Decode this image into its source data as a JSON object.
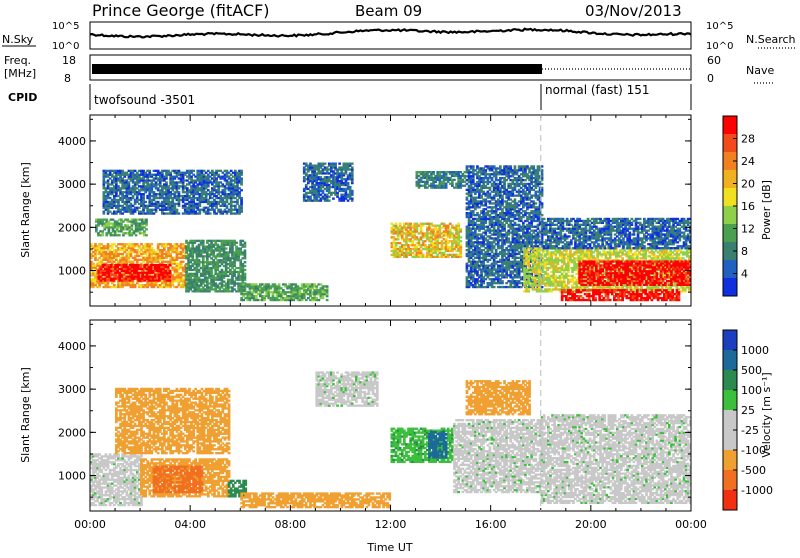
{
  "header": {
    "station": "Prince George (fitACF)",
    "beam": "Beam 09",
    "date": "03/Nov/2013"
  },
  "top_panels": {
    "nsky_label": "N.Sky",
    "nsky_ticks": [
      "10^5",
      "10^0"
    ],
    "nsearch_label": "N.Search",
    "nsearch_ticks": [
      "10^5",
      "10^0"
    ],
    "freq_label_line1": "Freq.",
    "freq_label_line2": "[MHz]",
    "freq_ticks": [
      "18",
      "8"
    ],
    "nave_label": "Nave",
    "nave_ticks": [
      "60",
      "0"
    ],
    "cpid_label": "CPID",
    "cpid_segments": [
      "twofsound -3501",
      "normal (fast) 151"
    ]
  },
  "power_colorbar": {
    "label": "Power [dB]",
    "ticks": [
      "28",
      "24",
      "20",
      "16",
      "12",
      "8",
      "4"
    ],
    "colors": [
      "#ff0000",
      "#f24a1a",
      "#f08020",
      "#f0b020",
      "#f0e020",
      "#8ed04a",
      "#4aa050",
      "#3a8070",
      "#2060c0",
      "#1030e0"
    ]
  },
  "velocity_colorbar": {
    "label": "Velocity [m s⁻¹]",
    "ticks": [
      "1000",
      "500",
      "100",
      "25",
      "-25",
      "-100",
      "-500",
      "-1000"
    ],
    "colors": [
      "#1a40c0",
      "#1c6a9a",
      "#2a8a50",
      "#3cc03c",
      "#c8c8c8",
      "#c8c8c8",
      "#f0a030",
      "#f07020",
      "#f03010"
    ]
  },
  "chart_data": [
    {
      "type": "heatmap",
      "title": "Power",
      "ylabel": "Slant Range [km]",
      "ylim": [
        180,
        4600
      ],
      "yticks": [
        "1000",
        "2000",
        "3000",
        "4000"
      ],
      "xticks": [
        "00:00",
        "04:00",
        "08:00",
        "12:00",
        "16:00",
        "20:00",
        "00:00"
      ],
      "xlim_hours": [
        0,
        24
      ],
      "mode_change_hour": 18,
      "regions": [
        {
          "t0": 0.0,
          "t1": 3.8,
          "r0": 600,
          "r1": 1600,
          "value": 22
        },
        {
          "t0": 0.3,
          "t1": 3.2,
          "r0": 750,
          "r1": 1150,
          "value": 30
        },
        {
          "t0": 3.8,
          "t1": 6.2,
          "r0": 500,
          "r1": 1700,
          "value": 10
        },
        {
          "t0": 0.2,
          "t1": 2.2,
          "r0": 1800,
          "r1": 2200,
          "value": 12
        },
        {
          "t0": 0.5,
          "t1": 6.0,
          "r0": 2300,
          "r1": 3300,
          "value": 6
        },
        {
          "t0": 6.0,
          "t1": 9.5,
          "r0": 300,
          "r1": 700,
          "value": 12
        },
        {
          "t0": 8.5,
          "t1": 10.5,
          "r0": 2600,
          "r1": 3500,
          "value": 6
        },
        {
          "t0": 12.0,
          "t1": 14.8,
          "r0": 1300,
          "r1": 2100,
          "value": 20
        },
        {
          "t0": 13.0,
          "t1": 15.0,
          "r0": 2900,
          "r1": 3300,
          "value": 8
        },
        {
          "t0": 15.0,
          "t1": 18.0,
          "r0": 600,
          "r1": 3400,
          "value": 6
        },
        {
          "t0": 17.3,
          "t1": 24.0,
          "r0": 500,
          "r1": 1500,
          "value": 18
        },
        {
          "t0": 19.5,
          "t1": 24.0,
          "r0": 650,
          "r1": 1200,
          "value": 30
        },
        {
          "t0": 18.8,
          "t1": 23.5,
          "r0": 300,
          "r1": 550,
          "value": 30
        },
        {
          "t0": 18.0,
          "t1": 24.0,
          "r0": 1500,
          "r1": 2200,
          "value": 6
        }
      ]
    },
    {
      "type": "heatmap",
      "title": "Velocity",
      "ylabel": "Slant Range [km]",
      "ylim": [
        180,
        4600
      ],
      "yticks": [
        "1000",
        "2000",
        "3000",
        "4000"
      ],
      "xticks": [
        "00:00",
        "04:00",
        "08:00",
        "12:00",
        "16:00",
        "20:00",
        "00:00"
      ],
      "xlabel": "Time UT",
      "xlim_hours": [
        0,
        24
      ],
      "mode_change_hour": 18,
      "regions": [
        {
          "t0": 0.0,
          "t1": 2.0,
          "r0": 300,
          "r1": 1500,
          "value": 0
        },
        {
          "t0": 2.0,
          "t1": 5.5,
          "r0": 500,
          "r1": 1400,
          "value": -400
        },
        {
          "t0": 2.5,
          "t1": 4.5,
          "r0": 600,
          "r1": 1200,
          "value": -700
        },
        {
          "t0": 5.5,
          "t1": 6.2,
          "r0": 500,
          "r1": 900,
          "value": 300
        },
        {
          "t0": 1.0,
          "t1": 5.5,
          "r0": 1500,
          "r1": 3000,
          "value": -150
        },
        {
          "t0": 6.0,
          "t1": 12.0,
          "r0": 250,
          "r1": 600,
          "value": -150
        },
        {
          "t0": 9.0,
          "t1": 11.5,
          "r0": 2600,
          "r1": 3400,
          "value": 0
        },
        {
          "t0": 12.0,
          "t1": 14.5,
          "r0": 1300,
          "r1": 2100,
          "value": 80
        },
        {
          "t0": 13.5,
          "t1": 14.2,
          "r0": 1400,
          "r1": 2000,
          "value": 600
        },
        {
          "t0": 15.0,
          "t1": 17.5,
          "r0": 2400,
          "r1": 3200,
          "value": -150
        },
        {
          "t0": 14.5,
          "t1": 18.0,
          "r0": 600,
          "r1": 2300,
          "value": 0
        },
        {
          "t0": 18.0,
          "t1": 24.0,
          "r0": 350,
          "r1": 2400,
          "value": 0
        }
      ]
    }
  ]
}
